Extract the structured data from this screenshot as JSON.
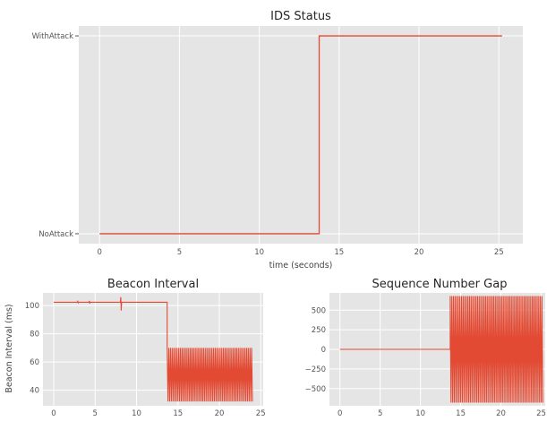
{
  "chart_data": [
    {
      "type": "line",
      "title": "IDS Status",
      "xlabel": "time (seconds)",
      "ylabel": "",
      "xlim": [
        -1.3,
        26.5
      ],
      "x_ticks": [
        0,
        5,
        10,
        15,
        20,
        25
      ],
      "y_categories": [
        "NoAttack",
        "WithAttack"
      ],
      "grid": true,
      "series": [
        {
          "color": "#e24a33",
          "x": [
            0,
            13.75,
            13.75,
            25.2
          ],
          "y": [
            "NoAttack",
            "NoAttack",
            "WithAttack",
            "WithAttack"
          ]
        }
      ]
    },
    {
      "type": "line",
      "title": "Beacon Interval",
      "xlabel": "",
      "ylabel": "Beacon Interval (ms)",
      "xlim": [
        -1.3,
        25.3
      ],
      "ylim": [
        29,
        109
      ],
      "x_ticks": [
        0,
        5,
        10,
        15,
        20,
        25
      ],
      "y_ticks": [
        40,
        60,
        80,
        100
      ],
      "grid": true,
      "series": [
        {
          "color": "#e24a33",
          "segments": [
            {
              "x_start": 0,
              "x_end": 13.7,
              "value": 102.4,
              "spikes": [
                {
                  "x": 2.9,
                  "min": 102.0,
                  "max": 103.0
                },
                {
                  "x": 4.3,
                  "min": 101.5,
                  "max": 103.3
                },
                {
                  "x": 8.1,
                  "min": 96.5,
                  "max": 106.0
                }
              ]
            },
            {
              "x_start": 13.7,
              "x_end": 24.0,
              "oscillation": {
                "min": 32,
                "max": 70,
                "step": 0.1
              }
            }
          ]
        }
      ]
    },
    {
      "type": "line",
      "title": "Sequence Number Gap",
      "xlabel": "",
      "ylabel": "",
      "xlim": [
        -1.3,
        25.5
      ],
      "ylim": [
        -720,
        720
      ],
      "x_ticks": [
        0,
        5,
        10,
        15,
        20,
        25
      ],
      "y_ticks": [
        -500,
        -250,
        0,
        250,
        500
      ],
      "grid": true,
      "series": [
        {
          "color": "#e24a33",
          "segments": [
            {
              "x_start": 0,
              "x_end": 13.7,
              "value": 0
            },
            {
              "x_start": 13.7,
              "x_end": 25.2,
              "oscillation": {
                "min": -680,
                "max": 680,
                "step": 0.1
              }
            }
          ]
        }
      ]
    }
  ]
}
